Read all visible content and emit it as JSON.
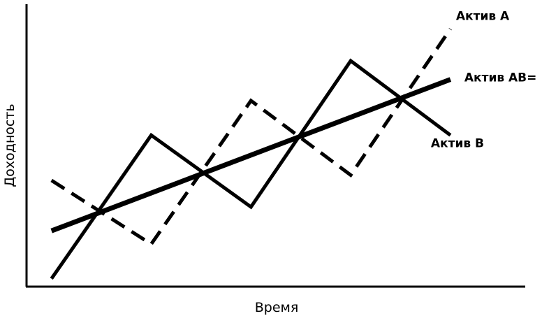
{
  "chart_data": {
    "type": "line",
    "title": "",
    "xlabel": "Время",
    "ylabel": "Доходность",
    "xlim": [
      0,
      10
    ],
    "ylim": [
      0,
      10
    ],
    "grid": false,
    "series": [
      {
        "name": "Актив A",
        "style": "dashed",
        "x": [
          0.5,
          2.5,
          4.5,
          6.5,
          8.5
        ],
        "y": [
          4.0,
          1.6,
          7.0,
          4.2,
          9.7
        ]
      },
      {
        "name": "Актив B",
        "style": "solid",
        "x": [
          0.5,
          2.5,
          4.5,
          6.5,
          8.5
        ],
        "y": [
          0.3,
          5.7,
          3.0,
          8.5,
          5.7
        ]
      },
      {
        "name": "Актив AB=",
        "style": "solid-thick",
        "x": [
          0.5,
          8.5
        ],
        "y": [
          2.1,
          7.8
        ]
      }
    ]
  }
}
